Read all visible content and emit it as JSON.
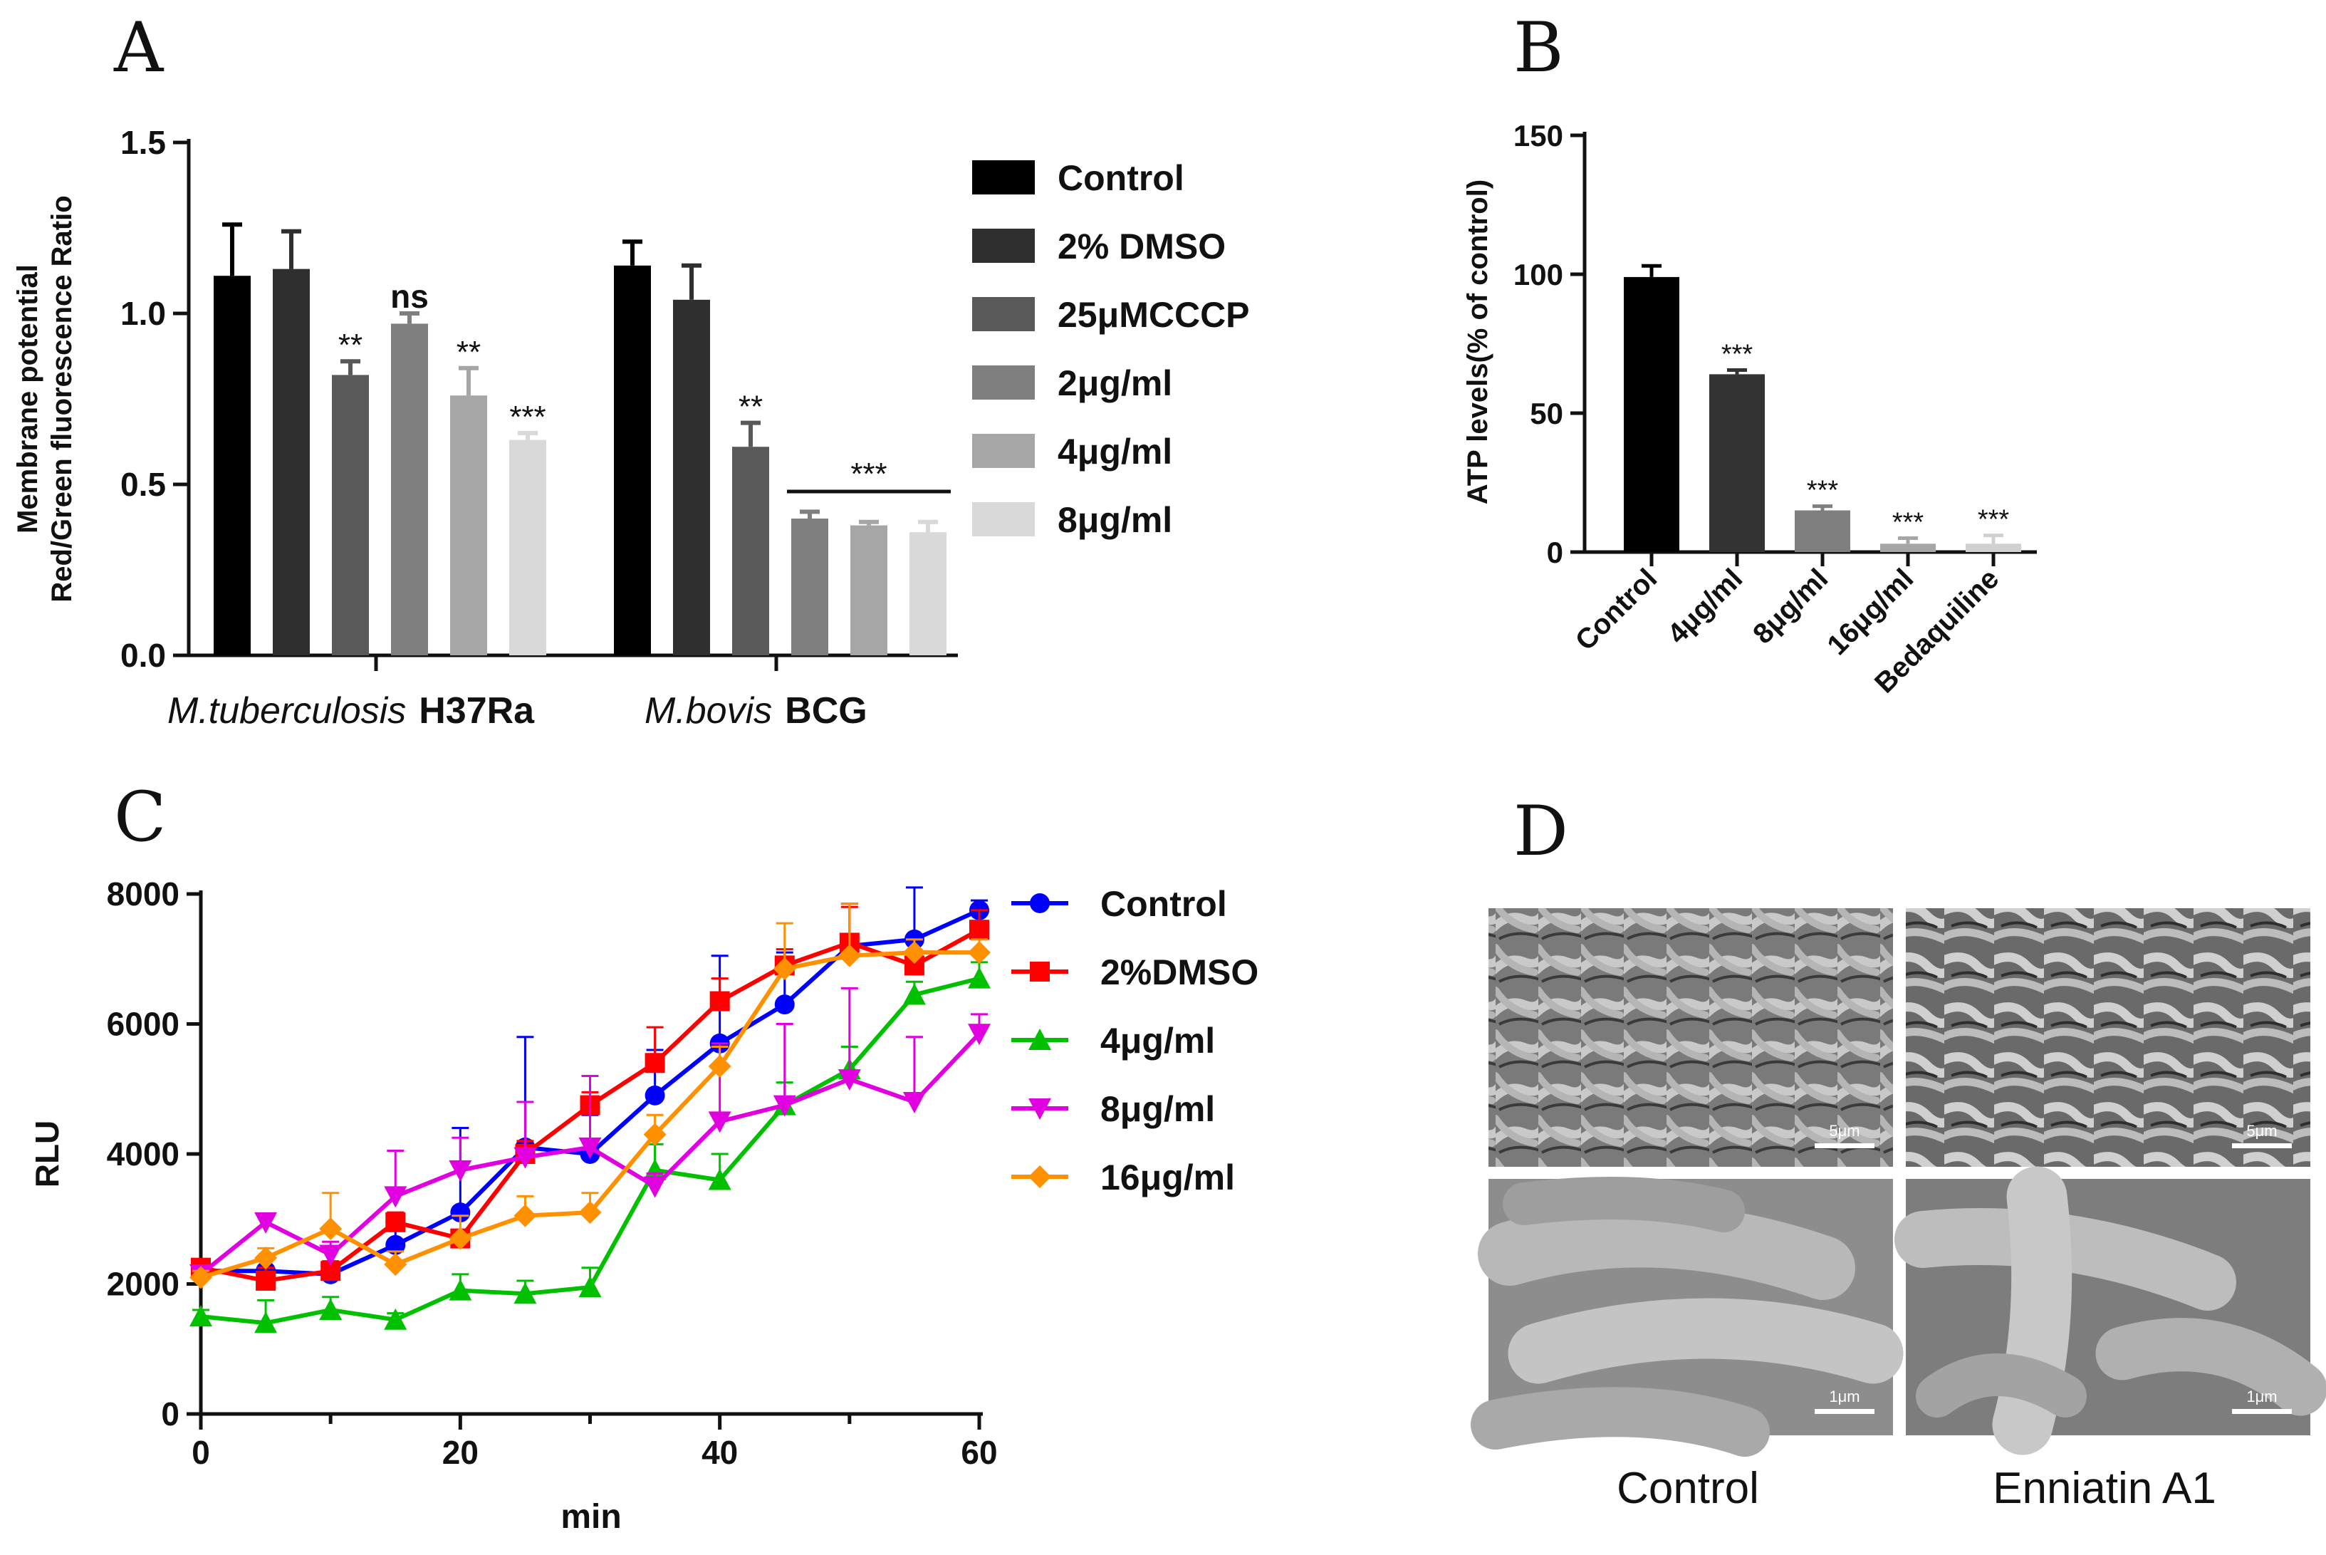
{
  "panels": {
    "A": {
      "letter": "A",
      "ylabel_line1": "Membrane potential",
      "ylabel_line2": "Red/Green fluorescence Ratio",
      "groups": [
        {
          "italic": "M.tuberculosis",
          "bold": "H37Ra"
        },
        {
          "italic": "M.bovis",
          "bold": "BCG"
        }
      ],
      "bracket_label": "***"
    },
    "B": {
      "letter": "B",
      "ylabel": "ATP levels(% of control)"
    },
    "C": {
      "letter": "C",
      "ylabel": "RLU",
      "xlabel": "min"
    },
    "D": {
      "letter": "D",
      "labels": [
        "Control",
        "Enniatin A1"
      ],
      "scalebars": [
        "5μm",
        "5μm",
        "1μm",
        "1μm"
      ],
      "image_desc_colors": [
        "#8a8a8a",
        "#6e6e6e"
      ]
    }
  },
  "chart_data": [
    {
      "panel": "A",
      "type": "bar",
      "categories": [
        "M.tuberculosis H37Ra",
        "M.bovis BCG"
      ],
      "ylim": [
        0,
        1.5
      ],
      "yticks": [
        "0.0",
        "0.5",
        "1.0",
        "1.5"
      ],
      "series": [
        {
          "name": "Control",
          "color": "#000000",
          "values": [
            1.11,
            1.14
          ],
          "err": [
            0.15,
            0.07
          ],
          "sig": [
            "",
            ""
          ]
        },
        {
          "name": "2% DMSO",
          "color": "#2f2f2f",
          "values": [
            1.13,
            1.04
          ],
          "err": [
            0.11,
            0.1
          ],
          "sig": [
            "",
            ""
          ]
        },
        {
          "name": "25μMCCCP",
          "color": "#595959",
          "values": [
            0.82,
            0.61
          ],
          "err": [
            0.04,
            0.07
          ],
          "sig": [
            "**",
            "**"
          ]
        },
        {
          "name": "2μg/ml",
          "color": "#7f7f7f",
          "values": [
            0.97,
            0.4
          ],
          "err": [
            0.03,
            0.02
          ],
          "sig": [
            "ns",
            ""
          ]
        },
        {
          "name": "4μg/ml",
          "color": "#a6a6a6",
          "values": [
            0.76,
            0.38
          ],
          "err": [
            0.08,
            0.01
          ],
          "sig": [
            "**",
            ""
          ]
        },
        {
          "name": "8μg/ml",
          "color": "#d9d9d9",
          "values": [
            0.63,
            0.36
          ],
          "err": [
            0.02,
            0.03
          ],
          "sig": [
            "***",
            ""
          ]
        }
      ],
      "legend": "right"
    },
    {
      "panel": "B",
      "type": "bar",
      "categories": [
        "Control",
        "4μg/ml",
        "8μg/ml",
        "16μg/ml",
        "Bedaquiline"
      ],
      "values": [
        99,
        64,
        15,
        3,
        3
      ],
      "err": [
        4,
        1.5,
        1.5,
        2,
        3
      ],
      "sig": [
        "",
        "***",
        "***",
        "***",
        "***"
      ],
      "colors": [
        "#000000",
        "#333333",
        "#7f7f7f",
        "#a6a6a6",
        "#d0d0d0"
      ],
      "ylim": [
        0,
        150
      ],
      "yticks": [
        "0",
        "50",
        "100",
        "150"
      ]
    },
    {
      "panel": "C",
      "type": "line",
      "x": [
        0,
        5,
        10,
        15,
        20,
        25,
        30,
        35,
        40,
        45,
        50,
        55,
        60
      ],
      "xlim": [
        0,
        60
      ],
      "ylim": [
        0,
        8000
      ],
      "xticks": [
        "0",
        "20",
        "40",
        "60"
      ],
      "yticks": [
        "0",
        "2000",
        "4000",
        "6000",
        "8000"
      ],
      "legend": "right",
      "series": [
        {
          "name": "Control",
          "color": "#0000ff",
          "marker": "circle",
          "values": [
            2200,
            2200,
            2150,
            2600,
            3100,
            4100,
            4000,
            4900,
            5700,
            6300,
            7200,
            7300,
            7750
          ],
          "err": [
            100,
            200,
            100,
            300,
            1300,
            1700,
            600,
            700,
            1350,
            800,
            650,
            800,
            150
          ]
        },
        {
          "name": "2%DMSO",
          "color": "#ff0000",
          "marker": "square",
          "values": [
            2250,
            2050,
            2200,
            2950,
            2700,
            4000,
            4750,
            5400,
            6350,
            6900,
            7250,
            6900,
            7450
          ],
          "err": [
            100,
            200,
            150,
            150,
            100,
            200,
            200,
            550,
            350,
            250,
            550,
            200,
            300
          ]
        },
        {
          "name": "4μg/ml",
          "color": "#00c000",
          "marker": "triangle-up",
          "values": [
            1500,
            1400,
            1600,
            1450,
            1900,
            1850,
            1950,
            3750,
            3600,
            4750,
            5300,
            6450,
            6700
          ],
          "err": [
            100,
            350,
            200,
            100,
            250,
            200,
            300,
            400,
            400,
            350,
            350,
            200,
            250
          ]
        },
        {
          "name": "8μg/ml",
          "color": "#e000e0",
          "marker": "triangle-down",
          "values": [
            2150,
            2950,
            2450,
            3350,
            3750,
            3950,
            4100,
            3500,
            4500,
            4750,
            5150,
            4800,
            5850
          ],
          "err": [
            100,
            100,
            200,
            700,
            500,
            850,
            1100,
            200,
            1200,
            1250,
            1400,
            1000,
            300
          ]
        },
        {
          "name": "16μg/ml",
          "color": "#ff9000",
          "marker": "diamond",
          "values": [
            2100,
            2400,
            2850,
            2300,
            2700,
            3050,
            3100,
            4300,
            5350,
            6850,
            7050,
            7100,
            7100
          ],
          "err": [
            100,
            150,
            550,
            200,
            350,
            300,
            300,
            300,
            300,
            700,
            800,
            200,
            200
          ]
        }
      ]
    }
  ]
}
